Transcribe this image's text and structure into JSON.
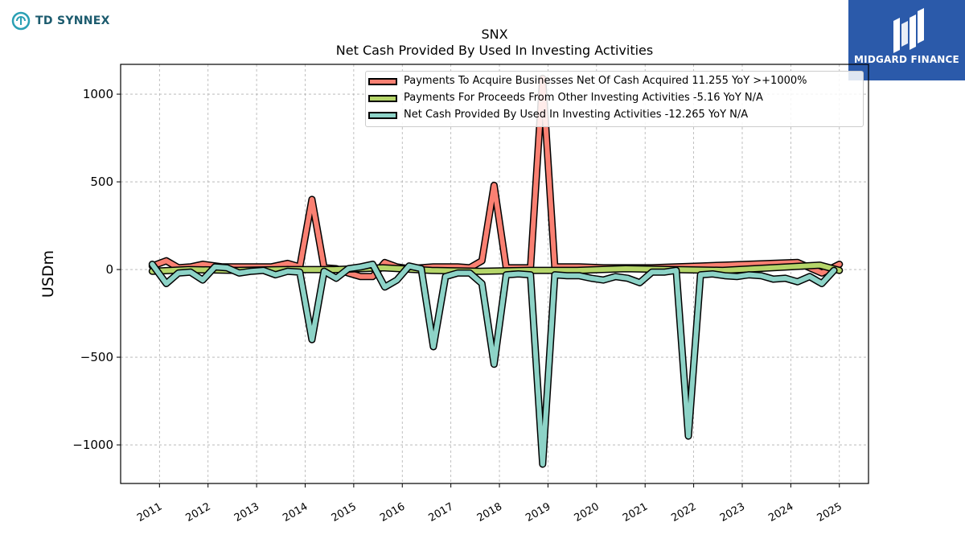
{
  "header": {
    "company_logo_text": "TD SYNNEX",
    "brand_logo_text": "MIDGARD FINANCE",
    "brand_color": "#2b5aaa",
    "company_color": "#1c5b6e"
  },
  "chart_data": {
    "type": "line",
    "title": "SNX",
    "subtitle": "Net Cash Provided By Used In Investing Activities",
    "xlabel": "",
    "ylabel": "USDm",
    "ylim": [
      -1220,
      1170
    ],
    "xlim": [
      2010.2,
      2025.6
    ],
    "yticks": [
      1000,
      500,
      0,
      -500,
      -1000
    ],
    "ytick_labels": [
      "1000",
      "500",
      "0",
      "−500",
      "−1000"
    ],
    "xticks": [
      2011,
      2012,
      2013,
      2014,
      2015,
      2016,
      2017,
      2018,
      2019,
      2020,
      2021,
      2022,
      2023,
      2024,
      2025
    ],
    "xtick_labels": [
      "2011",
      "2012",
      "2013",
      "2014",
      "2015",
      "2016",
      "2017",
      "2018",
      "2019",
      "2020",
      "2021",
      "2022",
      "2023",
      "2024",
      "2025"
    ],
    "grid": true,
    "legend_position": "top-right",
    "series": [
      {
        "name": "Payments To Acquire Businesses Net Of Cash Acquired  11.255 YoY >+1000%",
        "color": "#fa8072",
        "x": [
          2010.85,
          2011.14,
          2011.39,
          2011.64,
          2011.89,
          2012.3,
          2012.8,
          2013.3,
          2013.64,
          2013.89,
          2014.14,
          2014.39,
          2014.64,
          2014.89,
          2015.14,
          2015.39,
          2015.64,
          2015.89,
          2016.14,
          2016.39,
          2016.64,
          2016.89,
          2017.14,
          2017.39,
          2017.64,
          2017.89,
          2018.14,
          2018.39,
          2018.64,
          2018.89,
          2019.14,
          2019.39,
          2019.64,
          2020.14,
          2020.64,
          2021.14,
          2021.64,
          2022.14,
          2022.64,
          2023.14,
          2023.64,
          2024.14,
          2024.64,
          2025.0
        ],
        "y": [
          20,
          50,
          10,
          15,
          30,
          15,
          15,
          15,
          35,
          15,
          400,
          10,
          5,
          -20,
          -40,
          -40,
          40,
          15,
          5,
          10,
          15,
          15,
          15,
          10,
          50,
          480,
          10,
          10,
          10,
          1090,
          15,
          15,
          15,
          10,
          10,
          10,
          15,
          20,
          25,
          30,
          35,
          40,
          -20,
          30
        ]
      },
      {
        "name": "Payments For Proceeds From Other Investing Activities  -5.16 YoY N/A",
        "color": "#b5d56a",
        "x": [
          2010.85,
          2011.6,
          2012.6,
          2013.6,
          2014.6,
          2015.6,
          2016.6,
          2017.6,
          2018.6,
          2019.6,
          2020.6,
          2021.6,
          2022.6,
          2023.6,
          2024.6,
          2025.0
        ],
        "y": [
          -10,
          0,
          -5,
          0,
          0,
          10,
          -5,
          -10,
          -5,
          -5,
          5,
          0,
          -5,
          10,
          25,
          -5
        ]
      },
      {
        "name": "Net Cash Provided By Used In Investing Activities  -12.265 YoY N/A",
        "color": "#8dd3c7",
        "x": [
          2010.85,
          2011.14,
          2011.39,
          2011.64,
          2011.89,
          2012.14,
          2012.39,
          2012.64,
          2012.89,
          2013.14,
          2013.39,
          2013.64,
          2013.89,
          2014.14,
          2014.39,
          2014.64,
          2014.89,
          2015.14,
          2015.39,
          2015.64,
          2015.89,
          2016.14,
          2016.39,
          2016.64,
          2016.89,
          2017.14,
          2017.39,
          2017.64,
          2017.89,
          2018.14,
          2018.39,
          2018.64,
          2018.89,
          2019.14,
          2019.39,
          2019.64,
          2019.89,
          2020.14,
          2020.39,
          2020.64,
          2020.89,
          2021.14,
          2021.39,
          2021.64,
          2021.89,
          2022.14,
          2022.39,
          2022.64,
          2022.89,
          2023.14,
          2023.39,
          2023.64,
          2023.89,
          2024.14,
          2024.39,
          2024.64,
          2024.89
        ],
        "y": [
          30,
          -80,
          -20,
          -15,
          -60,
          15,
          10,
          -20,
          -10,
          -5,
          -30,
          -10,
          -15,
          -400,
          -10,
          -50,
          5,
          15,
          30,
          -100,
          -60,
          20,
          5,
          -440,
          -40,
          -20,
          -20,
          -80,
          -540,
          -30,
          -25,
          -30,
          -1110,
          -30,
          -35,
          -35,
          -50,
          -60,
          -40,
          -50,
          -75,
          -15,
          -15,
          -5,
          -950,
          -30,
          -25,
          -35,
          -40,
          -30,
          -35,
          -55,
          -50,
          -70,
          -40,
          -80,
          -5
        ]
      }
    ]
  }
}
